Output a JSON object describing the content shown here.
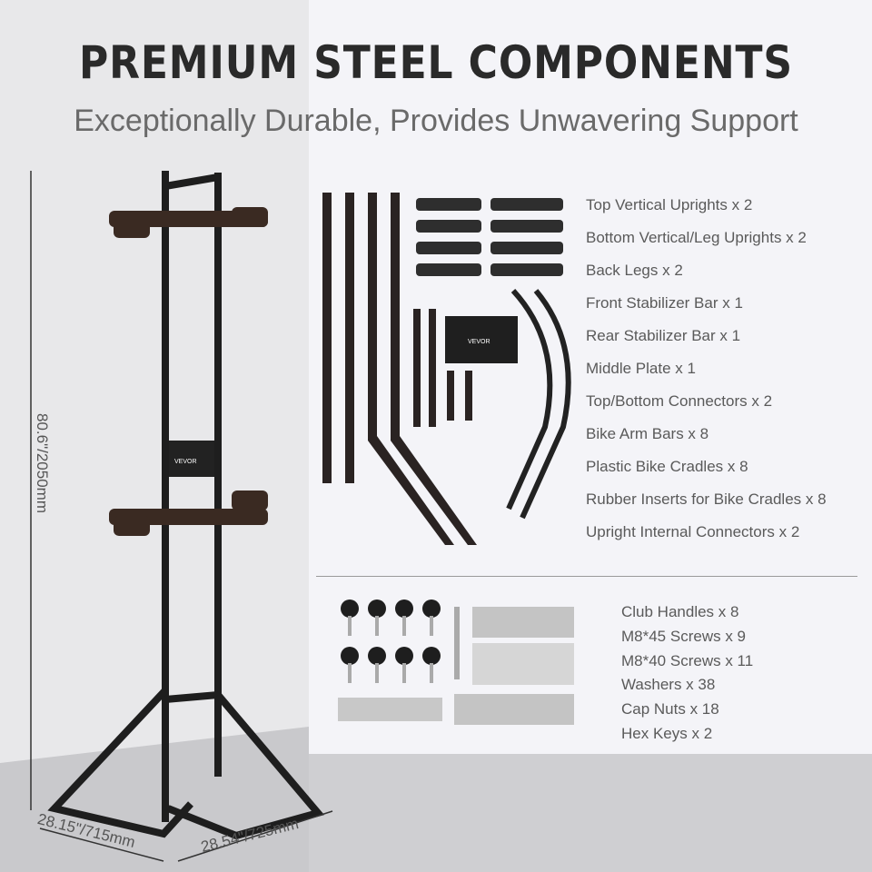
{
  "header": {
    "title": "PREMIUM STEEL COMPONENTS",
    "subtitle": "Exceptionally Durable, Provides Unwavering Support"
  },
  "dimensions": {
    "height": "80.6\"/2050mm",
    "width_left": "28.15\"/715mm",
    "width_right": "28.54\"/725mm"
  },
  "brand_plate": "VEVOR",
  "main_parts": [
    "Top Vertical Uprights x 2",
    "Bottom Vertical/Leg Uprights x 2",
    "Back Legs x 2",
    "Front Stabilizer Bar x 1",
    "Rear Stabilizer Bar x 1",
    "Middle Plate x 1",
    "Top/Bottom Connectors x 2",
    "Bike Arm Bars x 8",
    "Plastic Bike Cradles x 8",
    "Rubber Inserts for Bike Cradles x 8",
    "Upright Internal Connectors x 2"
  ],
  "hardware": [
    "Club Handles x 8",
    "M8*45 Screws x 9",
    "M8*40 Screws x 11",
    "Washers x 38",
    "Cap Nuts x 18",
    "Hex Keys x 2"
  ]
}
